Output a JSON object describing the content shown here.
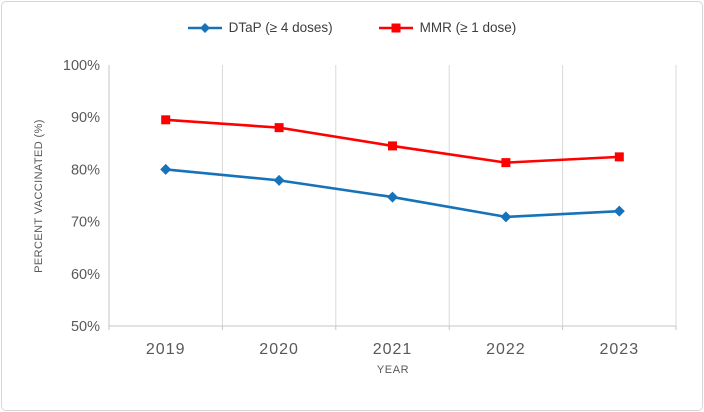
{
  "chart_data": {
    "type": "line",
    "title": "",
    "categories": [
      "2019",
      "2020",
      "2021",
      "2022",
      "2023"
    ],
    "series": [
      {
        "name": "DTaP (≥ 4 doses)",
        "marker": "diamond",
        "color": "#1673ba",
        "values": [
          80.0,
          77.9,
          74.7,
          70.9,
          72.0
        ]
      },
      {
        "name": "MMR (≥ 1 dose)",
        "marker": "square",
        "color": "#ff0000",
        "values": [
          89.5,
          88.0,
          84.5,
          81.3,
          82.4
        ]
      }
    ],
    "xlabel": "YEAR",
    "ylabel": "PERCENT VACCINATED (%)",
    "ylim": [
      50,
      100
    ],
    "ytick_step": 10,
    "ytick_labels": [
      "50%",
      "60%",
      "70%",
      "80%",
      "90%",
      "100%"
    ],
    "grid": "vertical",
    "legend_position": "top"
  },
  "colors": {
    "background": "#ffffff",
    "chart_border": "#d6d6d6",
    "gridline": "#d9d9d9",
    "axis_line": "#c6c6c6",
    "tick_label": "#595959",
    "axis_title": "#595959",
    "legend_text": "#3e3e3e"
  }
}
